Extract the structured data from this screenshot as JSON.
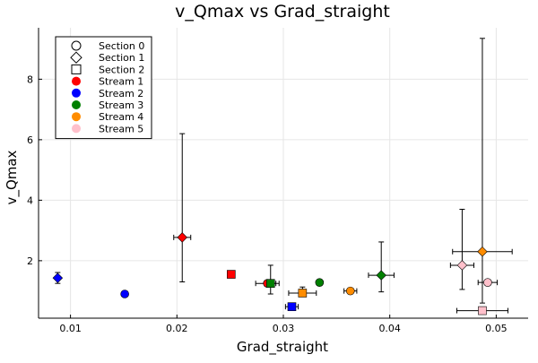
{
  "chart_data": {
    "type": "scatter",
    "title": "v_Qmax vs Grad_straight",
    "xlabel": "Grad_straight",
    "ylabel": "v_Qmax",
    "xlim": [
      0.007,
      0.053
    ],
    "ylim": [
      0.1,
      9.7
    ],
    "xticks": [
      0.01,
      0.02,
      0.03,
      0.04,
      0.05
    ],
    "xtick_labels": [
      "0.01",
      "0.02",
      "0.03",
      "0.04",
      "0.05"
    ],
    "yticks": [
      2,
      4,
      6,
      8
    ],
    "ytick_labels": [
      "2",
      "4",
      "6",
      "8"
    ],
    "grid": true,
    "legend_position": "top-left",
    "legend": [
      {
        "label": "Section 0",
        "kind": "marker",
        "shape": "circle"
      },
      {
        "label": "Section 1",
        "kind": "marker",
        "shape": "diamond"
      },
      {
        "label": "Section 2",
        "kind": "marker",
        "shape": "square"
      },
      {
        "label": "Stream 1",
        "kind": "color",
        "color": "#ff0000"
      },
      {
        "label": "Stream 2",
        "kind": "color",
        "color": "#0000ff"
      },
      {
        "label": "Stream 3",
        "kind": "color",
        "color": "#008000"
      },
      {
        "label": "Stream 4",
        "kind": "color",
        "color": "#ff8c00"
      },
      {
        "label": "Stream 5",
        "kind": "color",
        "color": "#ffc0cb"
      }
    ],
    "points": [
      {
        "stream": "Stream 2",
        "section": "Section 1",
        "color": "#0000ff",
        "shape": "diamond",
        "x": 0.0088,
        "y": 1.43,
        "y_err_low": 0.18,
        "y_err_high": 0.18
      },
      {
        "stream": "Stream 2",
        "section": "Section 0",
        "color": "#0000ff",
        "shape": "circle",
        "x": 0.0151,
        "y": 0.9
      },
      {
        "stream": "Stream 1",
        "section": "Section 1",
        "color": "#ff0000",
        "shape": "diamond",
        "x": 0.0205,
        "y": 2.77,
        "y_err_low": 1.47,
        "y_err_high": 3.43,
        "x_err_low": 0.0008,
        "x_err_high": 0.0008
      },
      {
        "stream": "Stream 1",
        "section": "Section 2",
        "color": "#ff0000",
        "shape": "square",
        "x": 0.0251,
        "y": 1.55,
        "x_err_low": 0.0003,
        "x_err_high": 0.0003
      },
      {
        "stream": "Stream 1",
        "section": "Section 0",
        "color": "#ff0000",
        "shape": "circle",
        "x": 0.0285,
        "y": 1.25,
        "x_err_low": 0.0011,
        "x_err_high": 0.0011
      },
      {
        "stream": "Stream 3",
        "section": "Section 2",
        "color": "#008000",
        "shape": "square",
        "x": 0.0288,
        "y": 1.25,
        "y_err_low": 0.35,
        "y_err_high": 0.6,
        "x_err_low": 0.0005,
        "x_err_high": 0.0005
      },
      {
        "stream": "Stream 2",
        "section": "Section 2",
        "color": "#0000ff",
        "shape": "square",
        "x": 0.0308,
        "y": 0.48,
        "x_err_low": 0.0006,
        "x_err_high": 0.0006
      },
      {
        "stream": "Stream 4",
        "section": "Section 2",
        "color": "#ff8c00",
        "shape": "square",
        "x": 0.0318,
        "y": 0.93,
        "y_err_low": 0.1,
        "y_err_high": 0.2,
        "x_err_low": 0.0013,
        "x_err_high": 0.0013
      },
      {
        "stream": "Stream 3",
        "section": "Section 0",
        "color": "#008000",
        "shape": "circle",
        "x": 0.0334,
        "y": 1.28
      },
      {
        "stream": "Stream 4",
        "section": "Section 0",
        "color": "#ff8c00",
        "shape": "circle",
        "x": 0.0363,
        "y": 1.0,
        "x_err_low": 0.0006,
        "x_err_high": 0.0006
      },
      {
        "stream": "Stream 3",
        "section": "Section 1",
        "color": "#008000",
        "shape": "diamond",
        "x": 0.0392,
        "y": 1.52,
        "y_err_low": 0.55,
        "y_err_high": 1.1,
        "x_err_low": 0.0012,
        "x_err_high": 0.0012
      },
      {
        "stream": "Stream 5",
        "section": "Section 1",
        "color": "#ffc0cb",
        "shape": "diamond",
        "x": 0.0468,
        "y": 1.85,
        "y_err_low": 0.8,
        "y_err_high": 1.85,
        "x_err_low": 0.0011,
        "x_err_high": 0.0011
      },
      {
        "stream": "Stream 4",
        "section": "Section 1",
        "color": "#ff8c00",
        "shape": "diamond",
        "x": 0.0487,
        "y": 2.3,
        "y_err_low": 1.7,
        "y_err_high": 7.05,
        "x_err_low": 0.0028,
        "x_err_high": 0.0028
      },
      {
        "stream": "Stream 5",
        "section": "Section 2",
        "color": "#ffc0cb",
        "shape": "square",
        "x": 0.0487,
        "y": 0.35,
        "x_err_low": 0.0024,
        "x_err_high": 0.0024
      },
      {
        "stream": "Stream 5",
        "section": "Section 0",
        "color": "#ffc0cb",
        "shape": "circle",
        "x": 0.0492,
        "y": 1.28,
        "x_err_low": 0.0009,
        "x_err_high": 0.0009
      }
    ]
  }
}
